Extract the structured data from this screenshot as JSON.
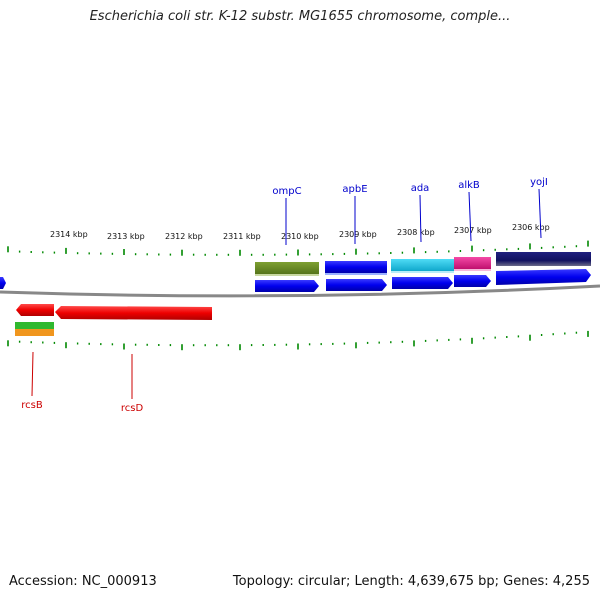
{
  "title": "Escherichia coli str. K-12 substr. MG1655 chromosome, comple...",
  "footer": {
    "accession": "Accession: NC_000913",
    "summary": "Topology: circular; Length: 4,639,675 bp; Genes: 4,255"
  },
  "kbp_labels": [
    "2314 kbp",
    "2313 kbp",
    "2312 kbp",
    "2311 kbp",
    "2310 kbp",
    "2309 kbp",
    "2308 kbp",
    "2307 kbp",
    "2306 kbp"
  ],
  "top_strand_genes": [
    {
      "name": "ompC"
    },
    {
      "name": "apbE"
    },
    {
      "name": "ada"
    },
    {
      "name": "alkB"
    },
    {
      "name": "yojI"
    }
  ],
  "bottom_strand_genes": [
    {
      "name": "rcsB"
    },
    {
      "name": "rcsD"
    }
  ],
  "colors": {
    "cds_forward": "#0000ee",
    "cds_reverse": "#ee0000",
    "feature_olive": "#6b8e23",
    "feature_cyan": "#1ec8e6",
    "feature_magenta": "#e6198c",
    "feature_navy": "#101060",
    "ticks": "#008800",
    "backbone": "#888888"
  }
}
